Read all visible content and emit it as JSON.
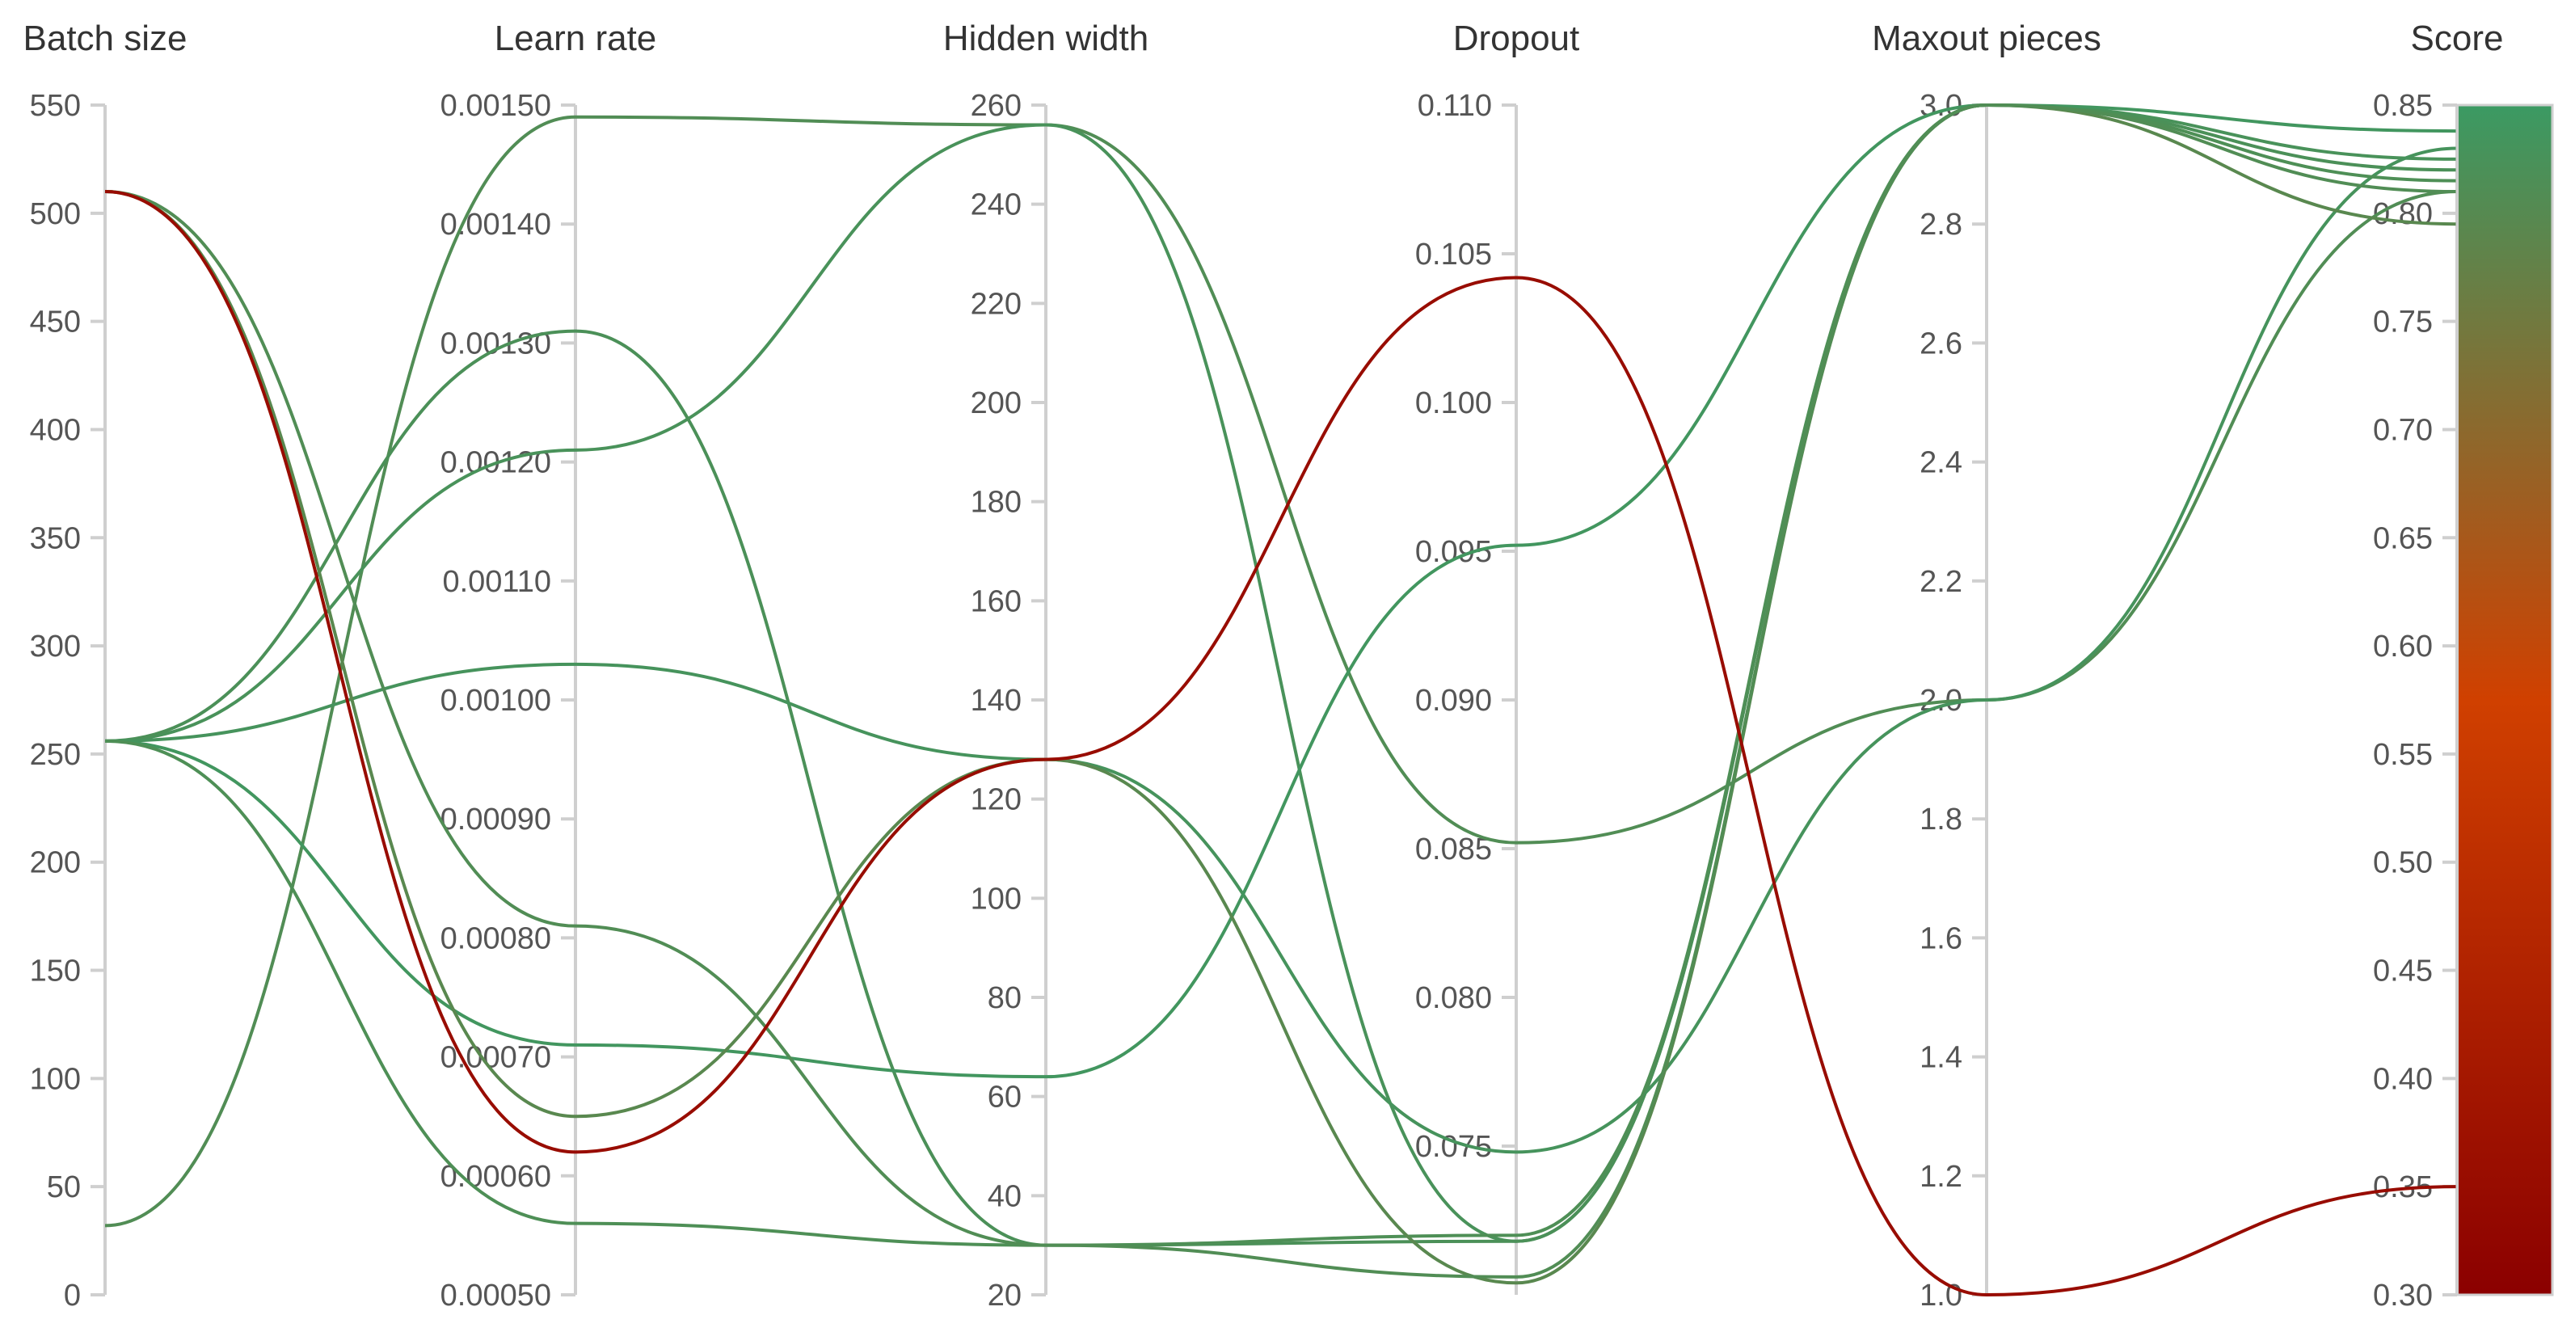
{
  "chart_data": {
    "type": "parallel_coordinates",
    "axes": [
      {
        "key": "batch_size",
        "label": "Batch size",
        "range": [
          0,
          550
        ],
        "ticks": [
          0,
          50,
          100,
          150,
          200,
          250,
          300,
          350,
          400,
          450,
          500,
          550
        ],
        "tick_labels": [
          "0",
          "50",
          "100",
          "150",
          "200",
          "250",
          "300",
          "350",
          "400",
          "450",
          "500",
          "550"
        ]
      },
      {
        "key": "learn_rate",
        "label": "Learn rate",
        "range": [
          0.0005,
          0.0015
        ],
        "ticks": [
          0.0005,
          0.0006,
          0.0007,
          0.0008,
          0.0009,
          0.001,
          0.0011,
          0.0012,
          0.0013,
          0.0014,
          0.0015
        ],
        "tick_labels": [
          "0.00050",
          "0.00060",
          "0.00070",
          "0.00080",
          "0.00090",
          "0.00100",
          "0.00110",
          "0.00120",
          "0.00130",
          "0.00140",
          "0.00150"
        ]
      },
      {
        "key": "hidden_width",
        "label": "Hidden width",
        "range": [
          20,
          260
        ],
        "ticks": [
          20,
          40,
          60,
          80,
          100,
          120,
          140,
          160,
          180,
          200,
          220,
          240,
          260
        ],
        "tick_labels": [
          "20",
          "40",
          "60",
          "80",
          "100",
          "120",
          "140",
          "160",
          "180",
          "200",
          "220",
          "240",
          "260"
        ]
      },
      {
        "key": "dropout",
        "label": "Dropout",
        "range": [
          0.07,
          0.11
        ],
        "ticks": [
          0.075,
          0.08,
          0.085,
          0.09,
          0.095,
          0.1,
          0.105,
          0.11
        ],
        "tick_labels": [
          "0.075",
          "0.080",
          "0.085",
          "0.090",
          "0.095",
          "0.100",
          "0.105",
          "0.110"
        ]
      },
      {
        "key": "maxout_pieces",
        "label": "Maxout pieces",
        "range": [
          1.0,
          3.0
        ],
        "ticks": [
          1.0,
          1.2,
          1.4,
          1.6,
          1.8,
          2.0,
          2.2,
          2.4,
          2.6,
          2.8,
          3.0
        ],
        "tick_labels": [
          "1.0",
          "1.2",
          "1.4",
          "1.6",
          "1.8",
          "2.0",
          "2.2",
          "2.4",
          "2.6",
          "2.8",
          "3.0"
        ]
      },
      {
        "key": "score",
        "label": "Score",
        "range": [
          0.3,
          0.85
        ],
        "ticks": [
          0.3,
          0.35,
          0.4,
          0.45,
          0.5,
          0.55,
          0.6,
          0.65,
          0.7,
          0.75,
          0.8,
          0.85
        ],
        "tick_labels": [
          "0.30",
          "0.35",
          "0.40",
          "0.45",
          "0.50",
          "0.55",
          "0.60",
          "0.65",
          "0.70",
          "0.75",
          "0.80",
          "0.85"
        ]
      }
    ],
    "runs": [
      {
        "batch_size": 32,
        "learn_rate": 0.00149,
        "hidden_width": 256,
        "dropout": 0.0852,
        "maxout_pieces": 2.0,
        "score": 0.81
      },
      {
        "batch_size": 256,
        "learn_rate": 0.00121,
        "hidden_width": 256,
        "dropout": 0.0718,
        "maxout_pieces": 3.0,
        "score": 0.825
      },
      {
        "batch_size": 256,
        "learn_rate": 0.00131,
        "hidden_width": 30,
        "dropout": 0.0718,
        "maxout_pieces": 3.0,
        "score": 0.82
      },
      {
        "batch_size": 256,
        "learn_rate": 0.00103,
        "hidden_width": 128,
        "dropout": 0.0748,
        "maxout_pieces": 2.0,
        "score": 0.83
      },
      {
        "batch_size": 256,
        "learn_rate": 0.00071,
        "hidden_width": 64,
        "dropout": 0.0952,
        "maxout_pieces": 3.0,
        "score": 0.838
      },
      {
        "batch_size": 256,
        "learn_rate": 0.00056,
        "hidden_width": 30,
        "dropout": 0.072,
        "maxout_pieces": 3.0,
        "score": 0.815
      },
      {
        "batch_size": 510,
        "learn_rate": 0.00065,
        "hidden_width": 128,
        "dropout": 0.0704,
        "maxout_pieces": 3.0,
        "score": 0.795
      },
      {
        "batch_size": 510,
        "learn_rate": 0.00081,
        "hidden_width": 30,
        "dropout": 0.0706,
        "maxout_pieces": 3.0,
        "score": 0.81
      },
      {
        "batch_size": 510,
        "learn_rate": 0.00062,
        "hidden_width": 128,
        "dropout": 0.1042,
        "maxout_pieces": 1.0,
        "score": 0.35
      }
    ],
    "color_scale": {
      "stops": [
        "#8b0000",
        "#d04000",
        "#3b9a63"
      ],
      "domain": [
        0.3,
        0.575,
        0.85
      ]
    },
    "colors": {
      "axis": "#cfcfcf",
      "title": "#333333",
      "tick": "#555555"
    }
  }
}
